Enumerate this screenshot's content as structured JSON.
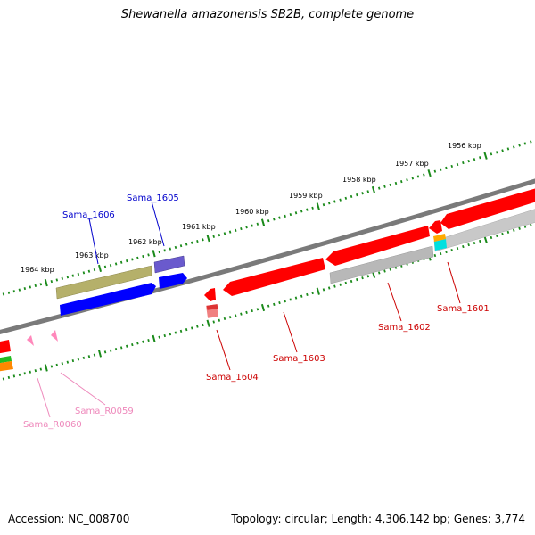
{
  "title": "Shewanella amazonensis SB2B, complete genome",
  "footer": {
    "accession": "Accession: NC_008700",
    "summary": "Topology: circular; Length: 4,306,142 bp; Genes: 3,774"
  },
  "ruler": {
    "unit": "kbp",
    "labels": [
      "1964 kbp",
      "1963 kbp",
      "1962 kbp",
      "1961 kbp",
      "1960 kbp",
      "1959 kbp",
      "1958 kbp",
      "1957 kbp",
      "1956 kbp"
    ]
  },
  "colors": {
    "tick": "#1a8a1a",
    "backbone": "#7a7a7a",
    "cds": "#ff0000",
    "blue_track": "#0000ff",
    "olive_track": "#b5b06a",
    "purple_track": "#6a5acd",
    "gray_track": "#b8b8b8",
    "rna": "#ff88bb",
    "label_blue": "#0000cc",
    "label_red": "#cc0000",
    "label_pink": "#ee88bb"
  },
  "genes": {
    "sama_1606": "Sama_1606",
    "sama_1605": "Sama_1605",
    "sama_1604": "Sama_1604",
    "sama_1603": "Sama_1603",
    "sama_1602": "Sama_1602",
    "sama_1601": "Sama_1601",
    "sama_r0059": "Sama_R0059",
    "sama_r0060": "Sama_R0060"
  }
}
